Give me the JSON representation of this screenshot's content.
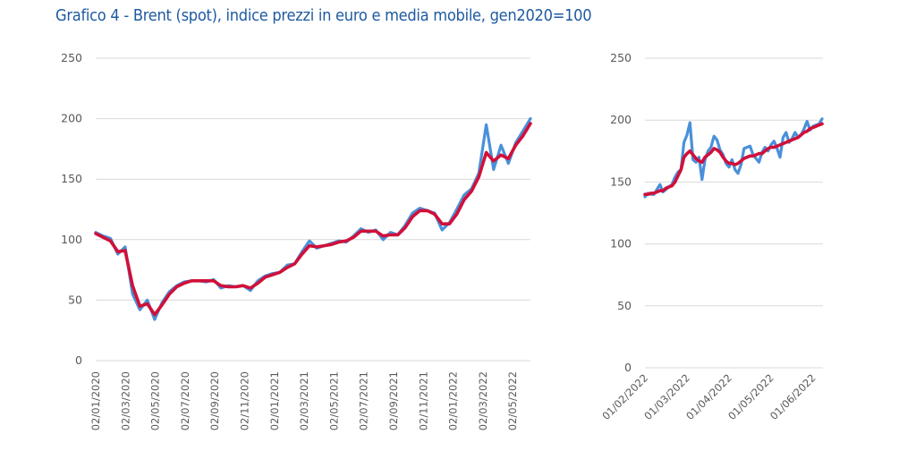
{
  "title": "Grafico 4 - Brent (spot), indice prezzi in euro e media mobile, gen2020=100",
  "colors": {
    "spot": "#4a90d9",
    "moving_average": "#d0103a",
    "title": "#1f5aa0"
  },
  "chart_data": [
    {
      "type": "line",
      "name": "left",
      "ylim": [
        0,
        250
      ],
      "yticks": [
        "0",
        "50",
        "100",
        "150",
        "200",
        "250"
      ],
      "grid": true,
      "x_tick_labels": [
        "02/01/2020",
        "02/03/2020",
        "02/05/2020",
        "02/07/2020",
        "02/09/2020",
        "02/11/2020",
        "02/01/2021",
        "02/03/2021",
        "02/05/2021",
        "02/07/2021",
        "02/09/2021",
        "02/11/2021",
        "02/01/2022",
        "02/03/2022",
        "02/05/2022"
      ],
      "x_step": "half-month, starting 02/01/2020",
      "series": [
        {
          "name": "spot",
          "values": [
            106,
            103,
            101,
            88,
            94,
            55,
            42,
            50,
            34,
            48,
            57,
            62,
            65,
            66,
            66,
            65,
            67,
            60,
            62,
            61,
            62,
            58,
            66,
            70,
            72,
            73,
            79,
            80,
            90,
            99,
            93,
            95,
            97,
            99,
            98,
            103,
            109,
            106,
            108,
            100,
            106,
            104,
            112,
            122,
            126,
            124,
            122,
            108,
            114,
            125,
            137,
            142,
            155,
            195,
            158,
            178,
            163,
            180,
            190,
            200
          ]
        },
        {
          "name": "moving_average",
          "values": [
            105,
            102,
            99,
            90,
            91,
            62,
            45,
            47,
            38,
            46,
            55,
            61,
            64,
            66,
            66,
            66,
            66,
            62,
            61,
            61,
            62,
            60,
            64,
            69,
            71,
            73,
            77,
            80,
            88,
            95,
            94,
            95,
            96,
            98,
            99,
            102,
            107,
            107,
            107,
            103,
            104,
            104,
            110,
            119,
            124,
            124,
            121,
            113,
            113,
            121,
            133,
            140,
            152,
            172,
            165,
            170,
            167,
            178,
            186,
            196
          ]
        }
      ]
    },
    {
      "type": "line",
      "name": "right",
      "ylim": [
        0,
        250
      ],
      "yticks": [
        "0",
        "50",
        "100",
        "150",
        "200",
        "250"
      ],
      "grid": true,
      "x_tick_labels": [
        "01/02/2022",
        "01/03/2022",
        "01/04/2022",
        "01/05/2022",
        "01/06/2022"
      ],
      "x_step": "approx. 3-day steps, starting 01/02/2022",
      "series": [
        {
          "name": "spot",
          "values": [
            138,
            141,
            140,
            140,
            144,
            148,
            142,
            144,
            146,
            148,
            154,
            158,
            160,
            182,
            188,
            198,
            168,
            166,
            170,
            152,
            168,
            175,
            178,
            187,
            184,
            176,
            172,
            165,
            162,
            168,
            160,
            157,
            164,
            177,
            178,
            179,
            172,
            169,
            166,
            174,
            178,
            175,
            180,
            183,
            177,
            170,
            186,
            190,
            182,
            185,
            190,
            186,
            188,
            193,
            199,
            192,
            195,
            196,
            197,
            201
          ]
        },
        {
          "name": "moving_average",
          "values": [
            140,
            140,
            141,
            141,
            142,
            143,
            143,
            145,
            146,
            147,
            150,
            155,
            160,
            170,
            173,
            175,
            172,
            169,
            167,
            166,
            170,
            172,
            174,
            177,
            176,
            174,
            170,
            167,
            165,
            165,
            164,
            165,
            167,
            169,
            170,
            171,
            171,
            172,
            173,
            173,
            175,
            177,
            178,
            178,
            179,
            180,
            181,
            182,
            183,
            184,
            185,
            186,
            188,
            190,
            191,
            193,
            194,
            195,
            196,
            197
          ]
        }
      ]
    }
  ]
}
